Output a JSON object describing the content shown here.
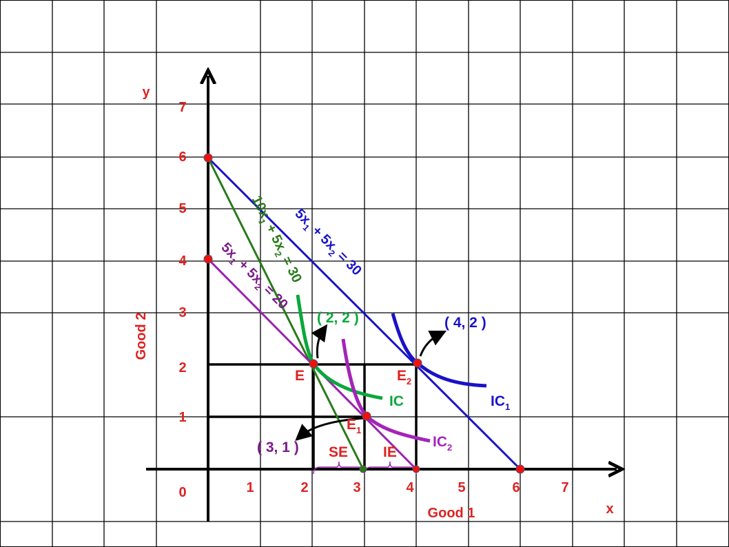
{
  "axes": {
    "x_label": "x",
    "y_label": "y",
    "x_title": "Good 1",
    "y_title": "Good 2",
    "x_ticks": [
      "1",
      "2",
      "3",
      "4",
      "5",
      "6",
      "7"
    ],
    "y_ticks": [
      "1",
      "2",
      "3",
      "4",
      "5",
      "6",
      "7"
    ],
    "origin": "0"
  },
  "budget_lines": {
    "blue": {
      "eq": "5x",
      "s1": "1",
      "mid": " + 5x",
      "s2": "2",
      "rhs": " = 30",
      "color": "#1a12c8"
    },
    "green": {
      "eq": "10x",
      "s1": "1",
      "mid": " + 5x",
      "s2": "2",
      "rhs": " = 30",
      "color": "#2a7a1a"
    },
    "purple": {
      "eq": "5x",
      "s1": "1",
      "mid": " + 5x",
      "s2": "2",
      "rhs": " = 20",
      "color": "#9a22b0"
    }
  },
  "points": {
    "E": "E",
    "E1": "E",
    "E1_sub": "1",
    "E2": "E",
    "E2_sub": "2",
    "p22": "( 2, 2 )",
    "p42": "( 4, 2 )",
    "p31": "( 3, 1 )"
  },
  "curves": {
    "IC": "IC",
    "IC1": "IC",
    "IC1_sub": "1",
    "IC2": "IC",
    "IC2_sub": "2"
  },
  "effects": {
    "SE": "SE",
    "IE": "IE"
  }
}
